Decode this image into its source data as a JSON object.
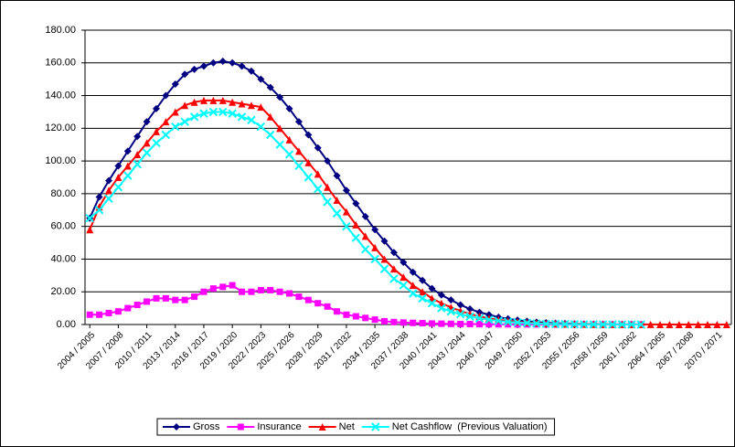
{
  "chart_data": {
    "type": "line",
    "categories": [
      "2004 / 2005",
      null,
      null,
      "2007 / 2008",
      null,
      null,
      "2010 / 2011",
      null,
      null,
      "2013 / 2014",
      null,
      null,
      "2016 / 2017",
      null,
      null,
      "2019 / 2020",
      null,
      null,
      "2022 / 2023",
      null,
      null,
      "2025 / 2026",
      null,
      null,
      "2028 / 2029",
      null,
      null,
      "2031 / 2032",
      null,
      null,
      "2034 / 2035",
      null,
      null,
      "2037 / 2038",
      null,
      null,
      "2040 / 2041",
      null,
      null,
      "2043 / 2044",
      null,
      null,
      "2046 / 2047",
      null,
      null,
      "2049 / 2050",
      null,
      null,
      "2052 / 2053",
      null,
      null,
      "2055 / 2056",
      null,
      null,
      "2058 / 2059",
      null,
      null,
      "2061 / 2062",
      null,
      null,
      "2064 / 2065",
      null,
      null,
      "2067 / 2068",
      null,
      null,
      "2070 / 2071",
      null
    ],
    "series": [
      {
        "name": "Gross",
        "color": "#000080",
        "marker": "diamond",
        "values": [
          65,
          78,
          88,
          97,
          106,
          115,
          124,
          132,
          140,
          147,
          153,
          156,
          158,
          160,
          161,
          160,
          158,
          155,
          150,
          145,
          139,
          132,
          124,
          116,
          108,
          100,
          91,
          82,
          74,
          66,
          58,
          51,
          44,
          38,
          32,
          27,
          22,
          18,
          15,
          12,
          9.5,
          7.5,
          6,
          4.5,
          3.5,
          2.7,
          2,
          1.5,
          1.1,
          0.8,
          0.6,
          0.4,
          0.3,
          0.2,
          0.15,
          0.1,
          0.07,
          0.05,
          0.03,
          null,
          null,
          null,
          null,
          null,
          null,
          null,
          null,
          null
        ]
      },
      {
        "name": "Insurance",
        "color": "#ff00ff",
        "marker": "square",
        "values": [
          6,
          6,
          7,
          8,
          10,
          12,
          14,
          16,
          16,
          15,
          15,
          17,
          20,
          22,
          23,
          24,
          20,
          20,
          21,
          21,
          20,
          19,
          17,
          15,
          13,
          11,
          8,
          6,
          5,
          4,
          3,
          2,
          1.5,
          1.2,
          1,
          0.8,
          0.6,
          0.5,
          0.4,
          0.3,
          0.25,
          0.2,
          0.15,
          0.12,
          0.1,
          0.08,
          0.06,
          0.05,
          0.04,
          0.03,
          0.02,
          0.02,
          0.02,
          0.02,
          0.02,
          0.02,
          0.02,
          0.02,
          0.02,
          null,
          null,
          null,
          null,
          null,
          null,
          null,
          null,
          null
        ]
      },
      {
        "name": "Net",
        "color": "#ff0000",
        "marker": "triangle",
        "values": [
          58,
          72,
          82,
          90,
          97,
          104,
          111,
          118,
          124,
          130,
          134,
          136,
          137,
          137,
          137,
          136,
          135,
          134,
          133,
          127,
          120,
          113,
          106,
          99,
          92,
          84,
          76,
          69,
          61,
          54,
          47,
          40,
          34,
          29,
          24,
          20,
          16,
          13,
          10.5,
          8.3,
          6.5,
          5,
          3.8,
          2.9,
          2.2,
          1.6,
          1.2,
          0.9,
          0.6,
          0.4,
          0.3,
          0.25,
          0.2,
          0.15,
          0.12,
          0.1,
          0.08,
          0.06,
          0.05,
          0.04,
          0.03,
          0.03,
          0.03,
          0.03,
          0.03,
          0.03,
          0.03,
          0.03
        ]
      },
      {
        "name": "Net Cashflow  (Previous Valuation)",
        "color": "#00ffff",
        "marker": "cross",
        "values": [
          65,
          70,
          77,
          84,
          91,
          98,
          105,
          111,
          116,
          121,
          124,
          127,
          129,
          130,
          130,
          129,
          127,
          125,
          121,
          116,
          110,
          104,
          97,
          90,
          83,
          75,
          68,
          60,
          53,
          46,
          40,
          34,
          28,
          24,
          19,
          16,
          13,
          10,
          8,
          6.3,
          4.9,
          3.8,
          2.9,
          2.2,
          1.6,
          1.2,
          0.9,
          0.6,
          0.4,
          0.3,
          0.2,
          0.15,
          0.1,
          0.08,
          0.05,
          0.04,
          0.03,
          0.02,
          0.01,
          null,
          null,
          null,
          null,
          null,
          null,
          null,
          null,
          null
        ]
      }
    ],
    "ylim": [
      0,
      180
    ],
    "yticks": [
      {
        "value": 0,
        "label": "0.00"
      },
      {
        "value": 20,
        "label": "20.00"
      },
      {
        "value": 40,
        "label": "40.00"
      },
      {
        "value": 60,
        "label": "60.00"
      },
      {
        "value": 80,
        "label": "80.00"
      },
      {
        "value": 100,
        "label": "100.00"
      },
      {
        "value": 120,
        "label": "120.00"
      },
      {
        "value": 140,
        "label": "140.00"
      },
      {
        "value": 160,
        "label": "160.00"
      },
      {
        "value": 180,
        "label": "180.00"
      }
    ],
    "grid": true,
    "legend": "bottom"
  }
}
